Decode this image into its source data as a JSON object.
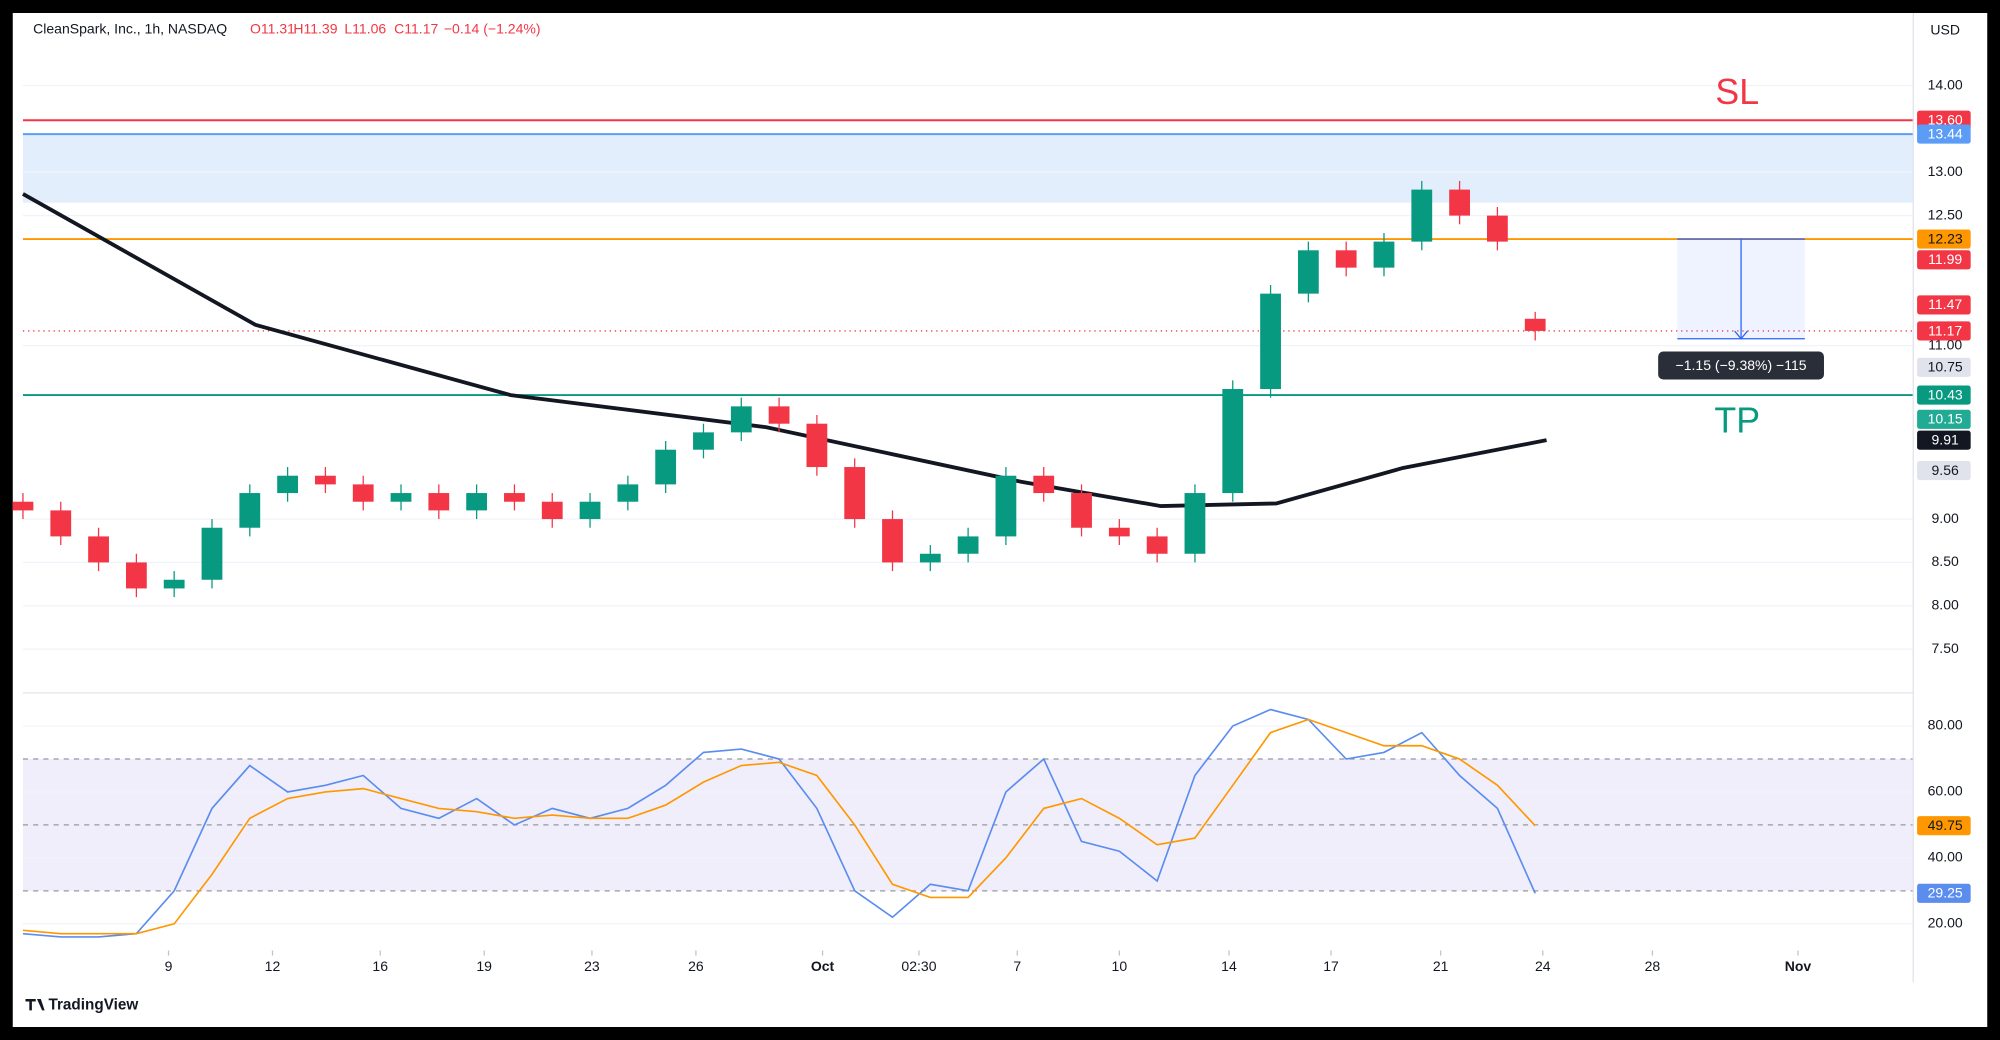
{
  "header": {
    "symbol": "CleanSpark, Inc., 1h, NASDAQ",
    "open": "O11.31",
    "high": "H11.39",
    "low": "L11.06",
    "close": "C11.17",
    "change": "−0.14 (−1.24%)",
    "currency": "USD",
    "brand": "TradingView"
  },
  "chart_data": [
    {
      "type": "candlestick",
      "up_color": "#089981",
      "down_color": "#f23645",
      "x": [
        0,
        2,
        4,
        6,
        8,
        10,
        12,
        14,
        16,
        18,
        20,
        22,
        24,
        26,
        28,
        30,
        32,
        34,
        36,
        38,
        40,
        42,
        44,
        46,
        48,
        50,
        52,
        54,
        56,
        58,
        60,
        62,
        64,
        66,
        68,
        70,
        72,
        74,
        76,
        78,
        80
      ],
      "open": [
        9.2,
        9.1,
        8.8,
        8.5,
        8.2,
        8.3,
        8.9,
        9.3,
        9.5,
        9.4,
        9.2,
        9.3,
        9.1,
        9.3,
        9.2,
        9.0,
        9.2,
        9.4,
        9.8,
        10.0,
        10.3,
        10.1,
        9.6,
        9.0,
        8.5,
        8.6,
        8.8,
        9.5,
        9.3,
        8.9,
        8.8,
        8.6,
        9.3,
        10.5,
        11.6,
        12.1,
        11.9,
        12.2,
        12.8,
        12.5,
        11.31
      ],
      "high": [
        9.3,
        9.2,
        8.9,
        8.6,
        8.4,
        9.0,
        9.4,
        9.6,
        9.6,
        9.5,
        9.4,
        9.4,
        9.4,
        9.4,
        9.3,
        9.3,
        9.5,
        9.9,
        10.1,
        10.4,
        10.4,
        10.2,
        9.7,
        9.1,
        8.7,
        8.9,
        9.6,
        9.6,
        9.4,
        9.0,
        8.9,
        9.4,
        10.6,
        11.7,
        12.2,
        12.2,
        12.3,
        12.9,
        12.9,
        12.6,
        11.39
      ],
      "low": [
        9.0,
        8.7,
        8.4,
        8.1,
        8.1,
        8.2,
        8.8,
        9.2,
        9.3,
        9.1,
        9.1,
        9.0,
        9.0,
        9.1,
        8.9,
        8.9,
        9.1,
        9.3,
        9.7,
        9.9,
        10.0,
        9.5,
        8.9,
        8.4,
        8.4,
        8.5,
        8.7,
        9.2,
        8.8,
        8.7,
        8.5,
        8.5,
        9.2,
        10.4,
        11.5,
        11.8,
        11.8,
        12.1,
        12.4,
        12.1,
        11.06
      ],
      "close": [
        9.1,
        8.8,
        8.5,
        8.2,
        8.3,
        8.9,
        9.3,
        9.5,
        9.4,
        9.2,
        9.3,
        9.1,
        9.3,
        9.2,
        9.0,
        9.2,
        9.4,
        9.8,
        10.0,
        10.3,
        10.1,
        9.6,
        9.0,
        8.5,
        8.6,
        8.8,
        9.5,
        9.3,
        8.9,
        8.8,
        8.6,
        9.3,
        10.5,
        11.6,
        12.1,
        11.9,
        12.2,
        12.8,
        12.5,
        12.2,
        11.17
      ],
      "ma": {
        "color": "#131722",
        "x": [
          0,
          12.3,
          25.8,
          39.3,
          52.8,
          60.2,
          66.3,
          73.0,
          80.6
        ],
        "values": [
          12.75,
          11.24,
          10.43,
          10.06,
          9.43,
          9.15,
          9.18,
          9.59,
          9.91
        ]
      },
      "xlim": [
        0,
        100
      ],
      "ylim": [
        7.04,
        14.69
      ],
      "yticks": [
        {
          "value": 14,
          "label": "14.00"
        },
        {
          "value": 13,
          "label": "13.00"
        },
        {
          "value": 12.5,
          "label": "12.50"
        },
        {
          "value": 11,
          "label": "11.00"
        },
        {
          "value": 9,
          "label": "9.00"
        },
        {
          "value": 8.5,
          "label": "8.50"
        },
        {
          "value": 8,
          "label": "8.00"
        },
        {
          "value": 7.5,
          "label": "7.50"
        }
      ],
      "zone": {
        "from": 12.65,
        "to": 13.44,
        "color": "#e3eefc"
      },
      "levels": [
        {
          "value": 13.6,
          "color": "#f23645"
        },
        {
          "value": 13.44,
          "color": "#5b9cf6"
        },
        {
          "value": 12.23,
          "color": "#ff9800"
        },
        {
          "value": 10.43,
          "color": "#089981"
        }
      ],
      "price_labels": [
        {
          "value": 13.6,
          "label": "13.60",
          "color": "#f23645",
          "text_color": "#ffffff"
        },
        {
          "value": 13.44,
          "label": "13.44",
          "color": "#5b9cf6",
          "text_color": "#ffffff"
        },
        {
          "value": 12.23,
          "label": "12.23",
          "color": "#ff9800",
          "text_color": "#131722"
        },
        {
          "value": 11.99,
          "label": "11.99",
          "color": "#f23645",
          "text_color": "#ffffff"
        },
        {
          "value": 11.47,
          "label": "11.47",
          "color": "#f23645",
          "text_color": "#ffffff"
        },
        {
          "value": 11.17,
          "label": "11.17",
          "color": "#f23645",
          "text_color": "#ffffff"
        },
        {
          "value": 10.75,
          "label": "10.75",
          "color": "#e0e3eb",
          "text_color": "#131722"
        },
        {
          "value": 10.43,
          "label": "10.43",
          "color": "#089981",
          "text_color": "#ffffff"
        },
        {
          "value": 10.15,
          "label": "10.15",
          "color": "#22ab94",
          "text_color": "#ffffff"
        },
        {
          "value": 9.91,
          "label": "9.91",
          "color": "#131722",
          "text_color": "#ffffff"
        },
        {
          "value": 9.56,
          "label": "9.56",
          "color": "#e0e3eb",
          "text_color": "#131722"
        }
      ],
      "measure": {
        "from": 12.23,
        "to": 11.08,
        "label": "−1.15 (−9.38%) −115"
      },
      "sl_label": "SL",
      "tp_label": "TP"
    },
    {
      "type": "line",
      "x": [
        0,
        2,
        4,
        6,
        8,
        10,
        12,
        14,
        16,
        18,
        20,
        22,
        24,
        26,
        28,
        30,
        32,
        34,
        36,
        38,
        40,
        42,
        44,
        46,
        48,
        50,
        52,
        54,
        56,
        58,
        60,
        62,
        64,
        66,
        68,
        70,
        72,
        74,
        76,
        78,
        80
      ],
      "series": [
        {
          "color": "#5b8def",
          "values": [
            17,
            16,
            16,
            17,
            30,
            55,
            68,
            60,
            62,
            65,
            55,
            52,
            58,
            50,
            55,
            52,
            55,
            62,
            72,
            73,
            70,
            55,
            30,
            22,
            32,
            30,
            60,
            70,
            45,
            42,
            33,
            65,
            80,
            85,
            82,
            70,
            72,
            78,
            65,
            55,
            29.25
          ]
        },
        {
          "color": "#ff9800",
          "values": [
            18,
            17,
            17,
            17,
            20,
            35,
            52,
            58,
            60,
            61,
            58,
            55,
            54,
            52,
            53,
            52,
            52,
            56,
            63,
            68,
            69,
            65,
            50,
            32,
            28,
            28,
            40,
            55,
            58,
            52,
            44,
            46,
            62,
            78,
            82,
            78,
            74,
            74,
            70,
            62,
            49.75
          ]
        }
      ],
      "xlim": [
        0,
        100
      ],
      "ylim": [
        11.9,
        89.3
      ],
      "yticks": [
        {
          "value": 80,
          "label": "80.00"
        },
        {
          "value": 60,
          "label": "60.00"
        },
        {
          "value": 40,
          "label": "40.00"
        },
        {
          "value": 20,
          "label": "20.00"
        }
      ],
      "band": {
        "from": 30,
        "to": 70,
        "color": "#f1eefb"
      },
      "levels": [
        70,
        50,
        30
      ],
      "price_labels": [
        {
          "value": 49.75,
          "label": "49.75",
          "color": "#ff9800",
          "text_color": "#131722"
        },
        {
          "value": 29.25,
          "label": "29.25",
          "color": "#5b8def",
          "text_color": "#ffffff"
        }
      ],
      "xticks": [
        {
          "value": 7.7,
          "label": "9"
        },
        {
          "value": 13.2,
          "label": "12"
        },
        {
          "value": 18.9,
          "label": "16"
        },
        {
          "value": 24.4,
          "label": "19"
        },
        {
          "value": 30.1,
          "label": "23"
        },
        {
          "value": 35.6,
          "label": "26"
        },
        {
          "value": 42.3,
          "label": "Oct"
        },
        {
          "value": 47.4,
          "label": "02:30"
        },
        {
          "value": 52.6,
          "label": "7"
        },
        {
          "value": 58.0,
          "label": "10"
        },
        {
          "value": 63.8,
          "label": "14"
        },
        {
          "value": 69.2,
          "label": "17"
        },
        {
          "value": 75.0,
          "label": "21"
        },
        {
          "value": 80.4,
          "label": "24"
        },
        {
          "value": 86.2,
          "label": "28"
        },
        {
          "value": 93.9,
          "label": "Nov"
        }
      ]
    }
  ]
}
